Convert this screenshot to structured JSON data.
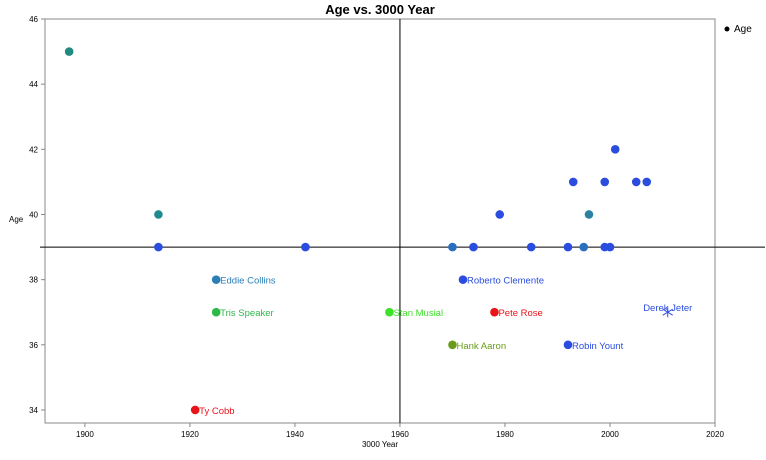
{
  "chart_data": {
    "type": "scatter",
    "title": "Age vs. 3000 Year",
    "xlabel": "3000 Year",
    "ylabel": "Age",
    "xlim": [
      1892.4,
      2020
    ],
    "ylim": [
      33.6,
      46
    ],
    "xticks": [
      "1900",
      "1920",
      "1940",
      "1960",
      "1980",
      "2000",
      "2020"
    ],
    "yticks": [
      "34",
      "36",
      "38",
      "40",
      "42",
      "44",
      "46"
    ],
    "grid": false,
    "reference_lines": {
      "x": 1960,
      "y": 39
    },
    "legend": {
      "position": "top-right",
      "entries": [
        "Age"
      ]
    },
    "points": [
      {
        "x": 1897,
        "y": 45,
        "color": "#1f8a7f"
      },
      {
        "x": 1914,
        "y": 40,
        "color": "#1f8a8f"
      },
      {
        "x": 1914,
        "y": 39,
        "color": "#2a4de0"
      },
      {
        "x": 1942,
        "y": 39,
        "color": "#2a4de0"
      },
      {
        "x": 1925,
        "y": 38,
        "color": "#2a7fb8",
        "label": "Eddie Collins"
      },
      {
        "x": 1925,
        "y": 37,
        "color": "#2eb84a",
        "label": "Tris Speaker"
      },
      {
        "x": 1921,
        "y": 34,
        "color": "#e8141a",
        "label": "Ty Cobb"
      },
      {
        "x": 1958,
        "y": 37,
        "color": "#3ee02a",
        "label": "Stan Musial"
      },
      {
        "x": 1970,
        "y": 36,
        "color": "#6a9a1a",
        "label": "Hank Aaron"
      },
      {
        "x": 1972,
        "y": 38,
        "color": "#2a4de0",
        "label": "Roberto Clemente"
      },
      {
        "x": 1978,
        "y": 37,
        "color": "#e8141a",
        "label": "Pete Rose"
      },
      {
        "x": 1992,
        "y": 36,
        "color": "#2a4de0",
        "label": "Robin Yount"
      },
      {
        "x": 2011,
        "y": 37,
        "color": "#2a4de0",
        "label": "Derek Jeter",
        "marker": "asterisk"
      },
      {
        "x": 1970,
        "y": 39,
        "color": "#2a6ec0"
      },
      {
        "x": 1974,
        "y": 39,
        "color": "#2a4de0"
      },
      {
        "x": 1985,
        "y": 39,
        "color": "#2a4de0"
      },
      {
        "x": 1992,
        "y": 39,
        "color": "#2a4de0"
      },
      {
        "x": 1995,
        "y": 39,
        "color": "#2a6ec0"
      },
      {
        "x": 1999,
        "y": 39,
        "color": "#2a4de0"
      },
      {
        "x": 2000,
        "y": 39,
        "color": "#2a4de0"
      },
      {
        "x": 1979,
        "y": 40,
        "color": "#2a4de0"
      },
      {
        "x": 1996,
        "y": 40,
        "color": "#2a82a0"
      },
      {
        "x": 1993,
        "y": 41,
        "color": "#2a4de0"
      },
      {
        "x": 1999,
        "y": 41,
        "color": "#2a4de0"
      },
      {
        "x": 2005,
        "y": 41,
        "color": "#2a4de0"
      },
      {
        "x": 2007,
        "y": 41,
        "color": "#2a4de0"
      },
      {
        "x": 2001,
        "y": 42,
        "color": "#2a4de0"
      }
    ]
  }
}
